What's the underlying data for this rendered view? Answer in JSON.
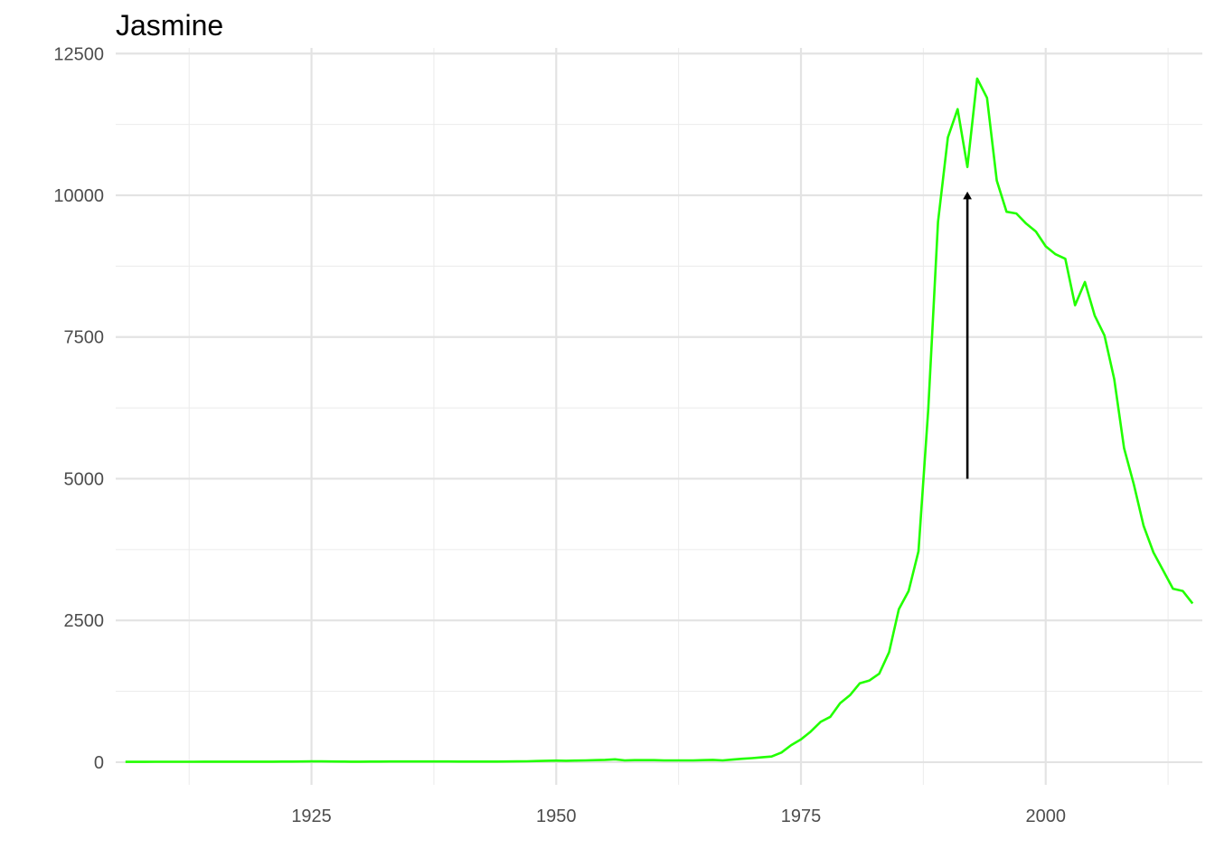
{
  "chart_data": {
    "type": "line",
    "title": "Jasmine",
    "xlabel": "",
    "ylabel": "",
    "xlim": [
      1905,
      2016
    ],
    "ylim": [
      -400,
      12600
    ],
    "x_ticks": [
      1925,
      1950,
      1975,
      2000
    ],
    "y_ticks": [
      0,
      2500,
      5000,
      7500,
      10000,
      12500
    ],
    "x_tick_labels": [
      "1925",
      "1950",
      "1975",
      "2000"
    ],
    "y_tick_labels": [
      "0",
      "2500",
      "5000",
      "7500",
      "10000",
      "12500"
    ],
    "grid": true,
    "line_color": "#22ff00",
    "annotation": {
      "type": "arrow",
      "x": 1992,
      "y_from": 5000,
      "y_to": 10050,
      "color": "#000000"
    },
    "x": [
      1906,
      1907,
      1908,
      1909,
      1910,
      1911,
      1912,
      1913,
      1914,
      1915,
      1916,
      1917,
      1918,
      1919,
      1920,
      1921,
      1922,
      1923,
      1924,
      1925,
      1926,
      1927,
      1928,
      1929,
      1930,
      1931,
      1932,
      1933,
      1934,
      1935,
      1936,
      1937,
      1938,
      1939,
      1940,
      1941,
      1942,
      1943,
      1944,
      1945,
      1946,
      1947,
      1948,
      1949,
      1950,
      1951,
      1952,
      1953,
      1954,
      1955,
      1956,
      1957,
      1958,
      1959,
      1960,
      1961,
      1962,
      1963,
      1964,
      1965,
      1966,
      1967,
      1968,
      1969,
      1970,
      1971,
      1972,
      1973,
      1974,
      1975,
      1976,
      1977,
      1978,
      1979,
      1980,
      1981,
      1982,
      1983,
      1984,
      1985,
      1986,
      1987,
      1988,
      1989,
      1990,
      1991,
      1992,
      1993,
      1994,
      1995,
      1996,
      1997,
      1998,
      1999,
      2000,
      2001,
      2002,
      2003,
      2004,
      2005,
      2006,
      2007,
      2008,
      2009,
      2010,
      2011,
      2012,
      2013,
      2014,
      2015
    ],
    "series": [
      {
        "values": [
          5,
          5,
          5,
          6,
          6,
          6,
          7,
          7,
          8,
          8,
          9,
          9,
          9,
          8,
          8,
          9,
          10,
          10,
          12,
          13,
          13,
          12,
          10,
          9,
          9,
          10,
          10,
          11,
          11,
          11,
          11,
          11,
          11,
          11,
          10,
          10,
          10,
          10,
          10,
          11,
          13,
          15,
          20,
          25,
          28,
          25,
          28,
          30,
          35,
          40,
          50,
          30,
          35,
          35,
          35,
          30,
          30,
          30,
          30,
          35,
          40,
          30,
          45,
          60,
          70,
          85,
          100,
          170,
          300,
          400,
          540,
          710,
          800,
          1040,
          1180,
          1390,
          1440,
          1560,
          1940,
          2700,
          3020,
          3720,
          6220,
          9530,
          11020,
          11520,
          10500,
          12060,
          11720,
          10260,
          9710,
          9680,
          9500,
          9360,
          9100,
          8960,
          8880,
          8060,
          8470,
          7880,
          7530,
          6760,
          5540,
          4900,
          4170,
          3700,
          3380,
          3060,
          3020,
          2800
        ]
      }
    ]
  }
}
